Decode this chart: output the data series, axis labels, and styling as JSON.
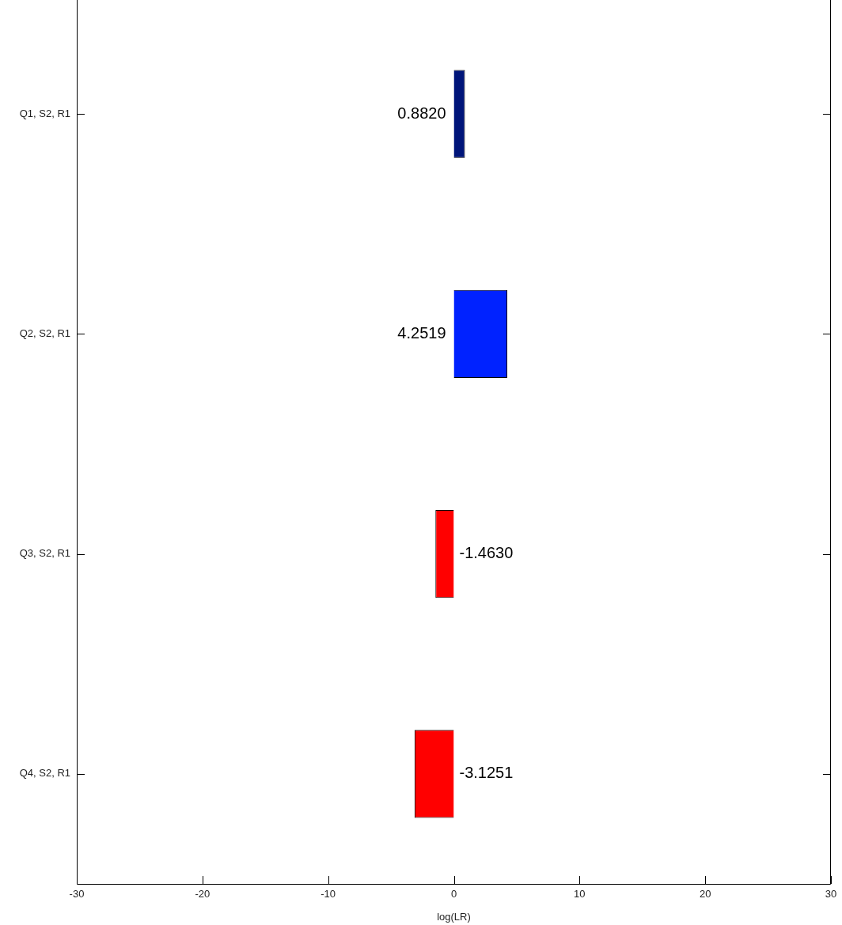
{
  "chart_data": {
    "type": "bar",
    "orientation": "horizontal",
    "xlabel": "log(LR)",
    "categories": [
      "Q1, S2, R1",
      "Q2, S2, R1",
      "Q3, S2, R1",
      "Q4, S2, R1"
    ],
    "values": [
      0.882,
      4.2519,
      -1.463,
      -3.1251
    ],
    "colors": [
      "#00157a",
      "#0022ff",
      "#ff0000",
      "#ff0000"
    ],
    "value_labels": [
      "0.8820",
      "4.2519",
      "-1.4630",
      "-3.1251"
    ],
    "xlim": [
      -30,
      30
    ],
    "xticks": [
      -30,
      -20,
      -10,
      0,
      10,
      20,
      30
    ]
  }
}
